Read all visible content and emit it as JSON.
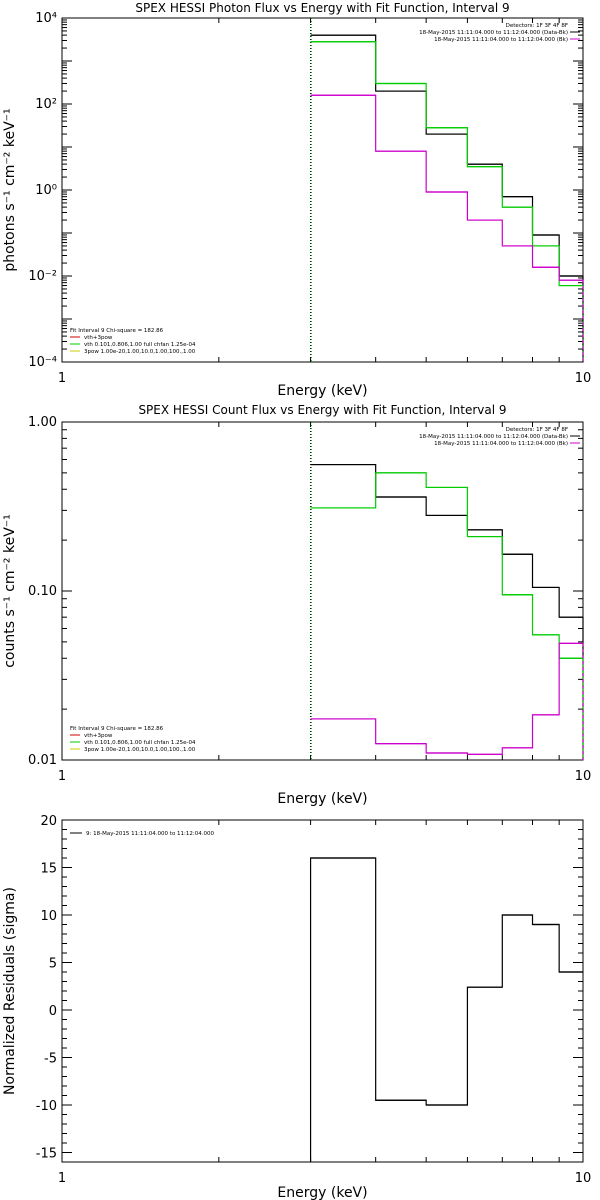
{
  "colors": {
    "data": "#000000",
    "model": "#00cc00",
    "background": "#cc00cc",
    "vline": "#00aa00"
  },
  "chart_data": [
    {
      "type": "line",
      "title": "SPEX HESSI Photon Flux vs Energy with Fit Function, Interval 9",
      "xlabel": "Energy (keV)",
      "ylabel": "photons s⁻¹ cm⁻² keV⁻¹",
      "xscale": "log",
      "yscale": "log",
      "xlim": [
        1,
        10
      ],
      "ylim": [
        0.0001,
        10000
      ],
      "xticks": [
        "1",
        "10"
      ],
      "yticks": [
        "10⁻⁴",
        "10⁻²",
        "10⁰",
        "10²",
        "10⁴"
      ],
      "vline_x": 3,
      "bin_edges": [
        3.0,
        4.0,
        5.0,
        6.0,
        7.0,
        8.0,
        9.0,
        10.0
      ],
      "series": [
        {
          "name": "18-May-2015 11:11:04.000 to 11:12:04.000 (Data-Bk)",
          "color": "#000000",
          "values": [
            4000,
            200,
            20,
            4,
            0.7,
            0.09,
            0.01
          ]
        },
        {
          "name": "model",
          "color": "#00cc00",
          "values": [
            2800,
            300,
            28,
            3.5,
            0.4,
            0.05,
            0.006
          ]
        },
        {
          "name": "18-May-2015 11:11:04.000 to 11:12:04.000 (Bk)",
          "color": "#cc00cc",
          "values": [
            160,
            8,
            0.9,
            0.2,
            0.05,
            0.016,
            0.008
          ]
        }
      ],
      "legend_top": {
        "detectors": "Detectors: 1F 3F 4F 8F",
        "line1": "18-May-2015 11:11:04.000 to 11:12:04.000 (Data-Bk)",
        "line2": "18-May-2015 11:11:04.000 to 11:12:04.000 (Bk)"
      },
      "legend_bottom": {
        "fit": "Fit Interval 9   Chi-square = 182.86",
        "items": [
          {
            "label": "vth+3pow",
            "color": "#cc0000"
          },
          {
            "label": "vth 0.101,0.806,1.00  full chfan 1.25e-04",
            "color": "#00cc00"
          },
          {
            "label": "3pow 1.00e-20,1.00,10.0,1.00,100.,1.00",
            "color": "#cccc00"
          }
        ]
      }
    },
    {
      "type": "line",
      "title": "SPEX HESSI Count Flux vs Energy with Fit Function, Interval 9",
      "xlabel": "Energy (keV)",
      "ylabel": "counts s⁻¹ cm⁻² keV⁻¹",
      "xscale": "log",
      "yscale": "log",
      "xlim": [
        1,
        10
      ],
      "ylim": [
        0.01,
        1.0
      ],
      "xticks": [
        "1",
        "10"
      ],
      "yticks": [
        "0.01",
        "0.10",
        "1.00"
      ],
      "vline_x": 3,
      "bin_edges": [
        3.0,
        4.0,
        5.0,
        6.0,
        7.0,
        8.0,
        9.0,
        10.0
      ],
      "series": [
        {
          "name": "18-May-2015 11:11:04.000 to 11:12:04.000 (Data-Bk)",
          "color": "#000000",
          "values": [
            0.56,
            0.36,
            0.28,
            0.23,
            0.165,
            0.105,
            0.07
          ]
        },
        {
          "name": "model",
          "color": "#00cc00",
          "values": [
            0.31,
            0.5,
            0.41,
            0.21,
            0.095,
            0.055,
            0.04
          ]
        },
        {
          "name": "18-May-2015 11:11:04.000 to 11:12:04.000 (Bk)",
          "color": "#cc00cc",
          "values": [
            0.0175,
            0.0125,
            0.011,
            0.0108,
            0.0118,
            0.0185,
            0.049
          ]
        }
      ],
      "legend_top": {
        "detectors": "Detectors: 1F 3F 4F 8F",
        "line1": "18-May-2015 11:11:04.000 to 11:12:04.000 (Data-Bk)",
        "line2": "18-May-2015 11:11:04.000 to 11:12:04.000 (Bk)"
      },
      "legend_bottom": {
        "fit": "Fit Interval 9   Chi-square = 182.86",
        "items": [
          {
            "label": "vth+3pow",
            "color": "#cc0000"
          },
          {
            "label": "vth 0.101,0.806,1.00  full chfan 1.25e-04",
            "color": "#00cc00"
          },
          {
            "label": "3pow 1.00e-20,1.00,10.0,1.00,100.,1.00",
            "color": "#cccc00"
          }
        ]
      }
    },
    {
      "type": "line",
      "title": "",
      "xlabel": "Energy (keV)",
      "ylabel": "Normalized Residuals (sigma)",
      "xscale": "log",
      "yscale": "linear",
      "xlim": [
        1,
        10
      ],
      "ylim": [
        -16,
        20
      ],
      "xticks": [
        "1",
        "10"
      ],
      "yticks": [
        "-15",
        "-10",
        "-5",
        "0",
        "5",
        "10",
        "15",
        "20"
      ],
      "ytick_values": [
        -15,
        -10,
        -5,
        0,
        5,
        10,
        15,
        20
      ],
      "bin_edges": [
        3.0,
        4.0,
        5.0,
        6.0,
        7.0,
        8.0,
        9.0,
        10.0
      ],
      "series": [
        {
          "name": "9: 18-May-2015 11:11:04.000 to 11:12:04.000",
          "color": "#000000",
          "values": [
            16,
            -9.5,
            -10,
            2.4,
            10,
            9,
            4
          ]
        }
      ],
      "legend_top": {
        "line1": "9: 18-May-2015 11:11:04.000 to 11:12:04.000"
      }
    }
  ]
}
